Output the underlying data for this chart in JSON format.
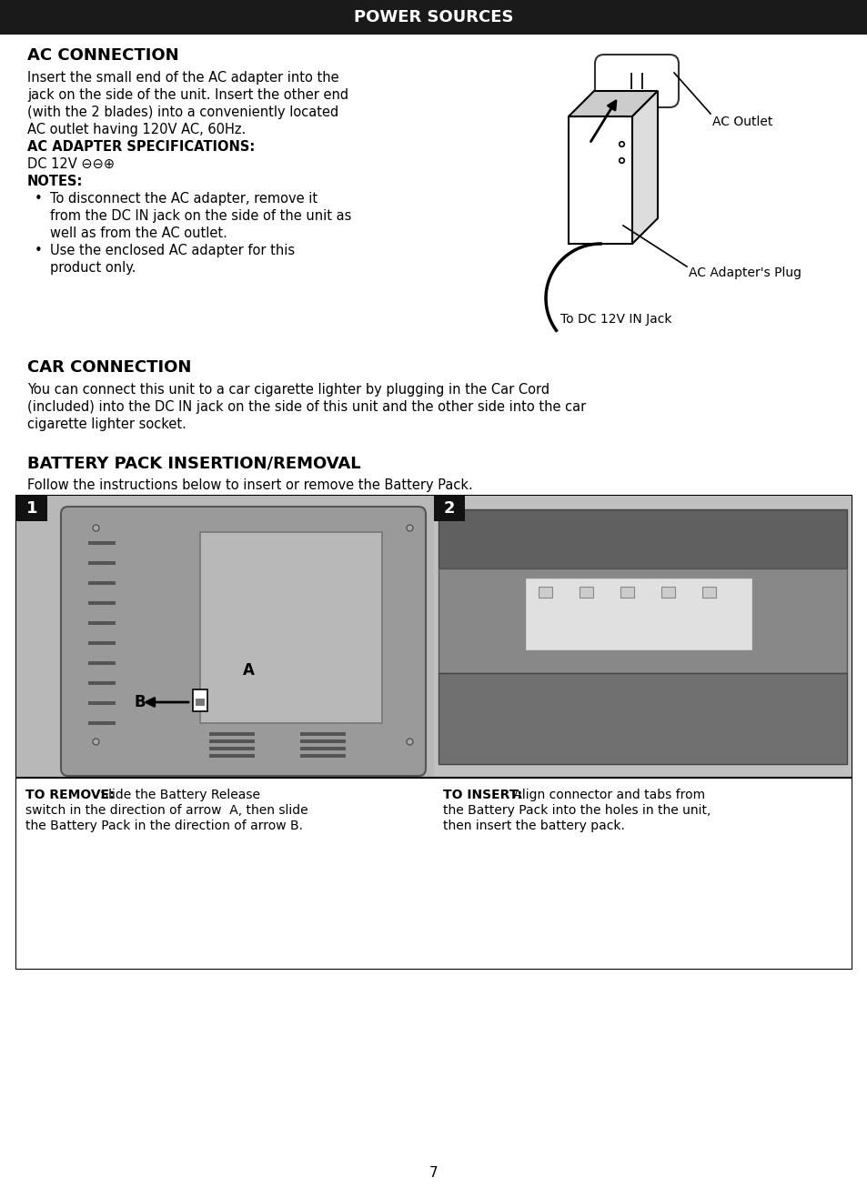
{
  "title_bar_text": "POWER SOURCES",
  "title_bar_bg": "#1a1a1a",
  "title_bar_color": "#ffffff",
  "page_bg": "#ffffff",
  "text_color": "#000000",
  "section1_title": "AC CONNECTION",
  "section1_body_lines": [
    "Insert the small end of the AC adapter into the",
    "jack on the side of the unit. Insert the other end",
    "(with the 2 blades) into a conveniently located",
    "AC outlet having 120V AC, 60Hz."
  ],
  "section1_spec_label": "AC ADAPTER SPECIFICATIONS:",
  "section1_spec_value": "DC 12V ⊖⊖⊕",
  "section1_notes_label": "NOTES:",
  "section1_note1_lines": [
    "To disconnect the AC adapter, remove it",
    "from the DC IN jack on the side of the unit as",
    "well as from the AC outlet."
  ],
  "section1_note2_lines": [
    "Use the enclosed AC adapter for this",
    "product only."
  ],
  "ac_outlet_label": "AC Outlet",
  "ac_adapter_label": "AC Adapter's Plug",
  "dc_jack_label": "To DC 12V IN Jack",
  "section2_title": "CAR CONNECTION",
  "section2_body_lines": [
    "You can connect this unit to a car cigarette lighter by plugging in the Car Cord",
    "(included) into the DC IN jack on the side of this unit and the other side into the car",
    "cigarette lighter socket."
  ],
  "section3_title": "BATTERY PACK INSERTION/REMOVAL",
  "section3_body": "Follow the instructions below to insert or remove the Battery Pack.",
  "box1_label": "1",
  "box2_label": "2",
  "remove_bold": "TO REMOVE:",
  "remove_text_lines": [
    " Slide the Battery Release",
    "switch in the direction of arrow  A, then slide",
    "the Battery Pack in the direction of arrow B."
  ],
  "insert_bold": "TO INSERT:",
  "insert_text_lines": [
    " Align connector and tabs from",
    "the Battery Pack into the holes in the unit,",
    "then insert the battery pack."
  ],
  "page_number": "7"
}
